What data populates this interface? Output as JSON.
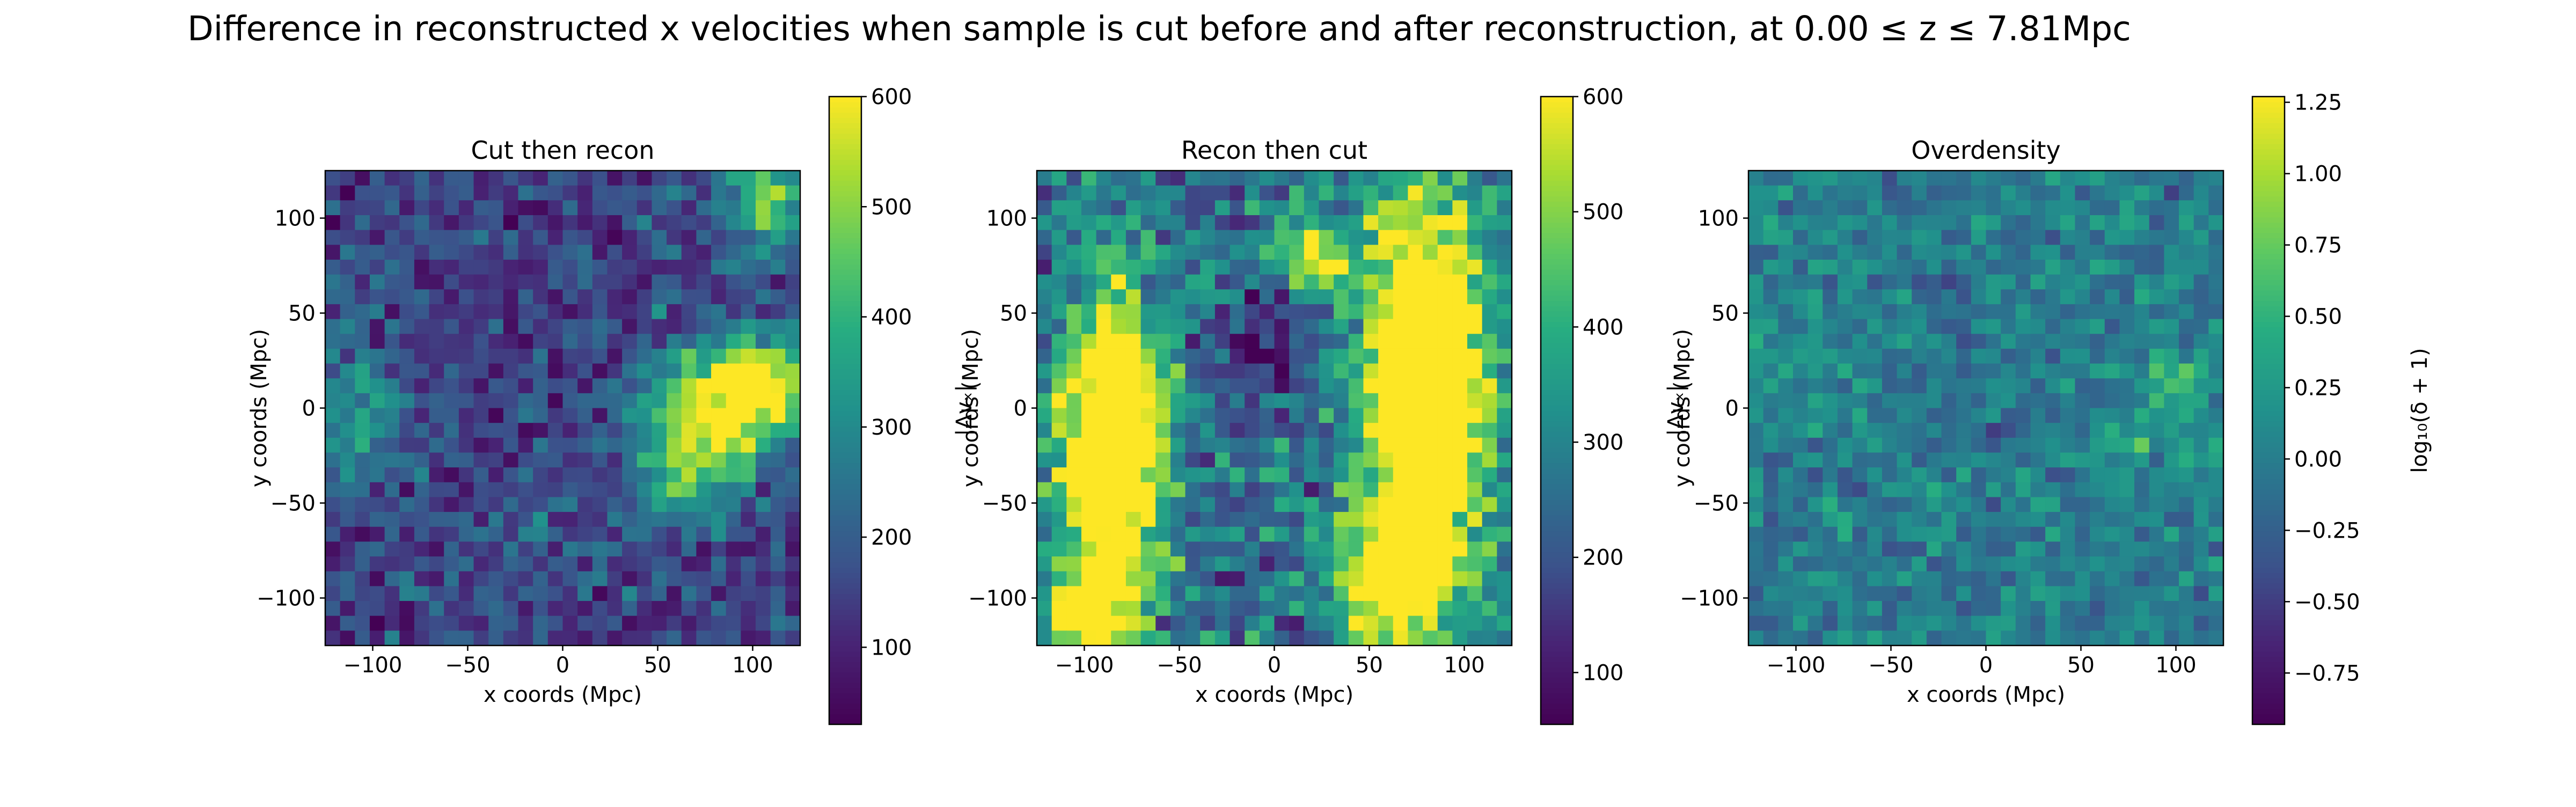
{
  "figure": {
    "title": "Difference in reconstructed x velocities when sample is cut before and after reconstruction, at 0.00 ≤ z ≤ 7.81Mpc"
  },
  "chart_data": [
    {
      "type": "heatmap",
      "title": "Cut then recon",
      "xlabel": "x coords (Mpc)",
      "ylabel": "y coords (Mpc)",
      "xlim": [
        -125,
        125
      ],
      "ylim": [
        -125,
        125
      ],
      "xticks": [
        -100,
        -50,
        0,
        50,
        100
      ],
      "yticks": [
        -100,
        -50,
        0,
        50,
        100
      ],
      "xtick_labels": [
        "−100",
        "−50",
        "0",
        "50",
        "100"
      ],
      "ytick_labels": [
        "−100",
        "−50",
        "0",
        "50",
        "100"
      ],
      "colormap": "viridis",
      "colorbar": {
        "label": "|Δvₓ|",
        "range": [
          30,
          600
        ],
        "ticks": [
          100,
          200,
          300,
          400,
          500,
          600
        ],
        "tick_labels": [
          "100",
          "200",
          "300",
          "400",
          "500",
          "600"
        ]
      },
      "grid": {
        "rows": 32,
        "cols": 32,
        "base": 150,
        "blobs": [
          {
            "x": 80,
            "y": 0,
            "sx": 28,
            "sy": 22,
            "amp": 420
          },
          {
            "x": 105,
            "y": 15,
            "sx": 18,
            "sy": 18,
            "amp": 300
          },
          {
            "x": 65,
            "y": -40,
            "sx": 20,
            "sy": 18,
            "amp": 200
          },
          {
            "x": -110,
            "y": 0,
            "sx": 20,
            "sy": 28,
            "amp": 180
          },
          {
            "x": 110,
            "y": 110,
            "sx": 20,
            "sy": 20,
            "amp": 280
          },
          {
            "x": -30,
            "y": -70,
            "sx": 22,
            "sy": 22,
            "amp": 60
          }
        ],
        "noise": 110
      }
    },
    {
      "type": "heatmap",
      "title": "Recon then cut",
      "xlabel": "x coords (Mpc)",
      "ylabel": "y coords (Mpc)",
      "xlim": [
        -125,
        125
      ],
      "ylim": [
        -125,
        125
      ],
      "xticks": [
        -100,
        -50,
        0,
        50,
        100
      ],
      "yticks": [
        -100,
        -50,
        0,
        50,
        100
      ],
      "xtick_labels": [
        "−100",
        "−50",
        "0",
        "50",
        "100"
      ],
      "ytick_labels": [
        "−100",
        "−50",
        "0",
        "50",
        "100"
      ],
      "colormap": "viridis",
      "colorbar": {
        "label": "|Δvₓ|",
        "range": [
          55,
          600
        ],
        "ticks": [
          100,
          200,
          300,
          400,
          500,
          600
        ],
        "tick_labels": [
          "100",
          "200",
          "300",
          "400",
          "500",
          "600"
        ]
      },
      "grid": {
        "rows": 32,
        "cols": 32,
        "base": 260,
        "blobs": [
          {
            "x": -85,
            "y": -20,
            "sx": 18,
            "sy": 55,
            "amp": 650
          },
          {
            "x": 80,
            "y": 10,
            "sx": 22,
            "sy": 70,
            "amp": 650
          },
          {
            "x": 60,
            "y": -90,
            "sx": 18,
            "sy": 25,
            "amp": 450
          },
          {
            "x": 20,
            "y": 80,
            "sx": 12,
            "sy": 12,
            "amp": 380
          },
          {
            "x": -100,
            "y": -110,
            "sx": 15,
            "sy": 15,
            "amp": 400
          },
          {
            "x": -10,
            "y": 30,
            "sx": 20,
            "sy": 20,
            "amp": -150
          }
        ],
        "noise": 150
      }
    },
    {
      "type": "heatmap",
      "title": "Overdensity",
      "xlabel": "x coords (Mpc)",
      "ylabel": "y coords (Mpc)",
      "xlim": [
        -125,
        125
      ],
      "ylim": [
        -125,
        125
      ],
      "xticks": [
        -100,
        -50,
        0,
        50,
        100
      ],
      "yticks": [
        -100,
        -50,
        0,
        50,
        100
      ],
      "xtick_labels": [
        "−100",
        "−50",
        "0",
        "50",
        "100"
      ],
      "ytick_labels": [
        "−100",
        "−50",
        "0",
        "50",
        "100"
      ],
      "colormap": "viridis",
      "colorbar": {
        "label": "log₁₀(δ + 1)",
        "range": [
          -0.93,
          1.27
        ],
        "ticks": [
          -0.75,
          -0.5,
          -0.25,
          0.0,
          0.25,
          0.5,
          0.75,
          1.0,
          1.25
        ],
        "tick_labels": [
          "−0.75",
          "−0.50",
          "−0.25",
          "0.00",
          "0.25",
          "0.50",
          "0.75",
          "1.00",
          "1.25"
        ]
      },
      "grid": {
        "rows": 32,
        "cols": 32,
        "base": 0.0,
        "blobs": [
          {
            "x": 100,
            "y": 10,
            "sx": 12,
            "sy": 12,
            "amp": 0.6
          },
          {
            "x": 80,
            "y": -20,
            "sx": 10,
            "sy": 10,
            "amp": 0.5
          },
          {
            "x": -100,
            "y": 20,
            "sx": 15,
            "sy": 15,
            "amp": 0.3
          }
        ],
        "noise": 0.38
      }
    }
  ]
}
